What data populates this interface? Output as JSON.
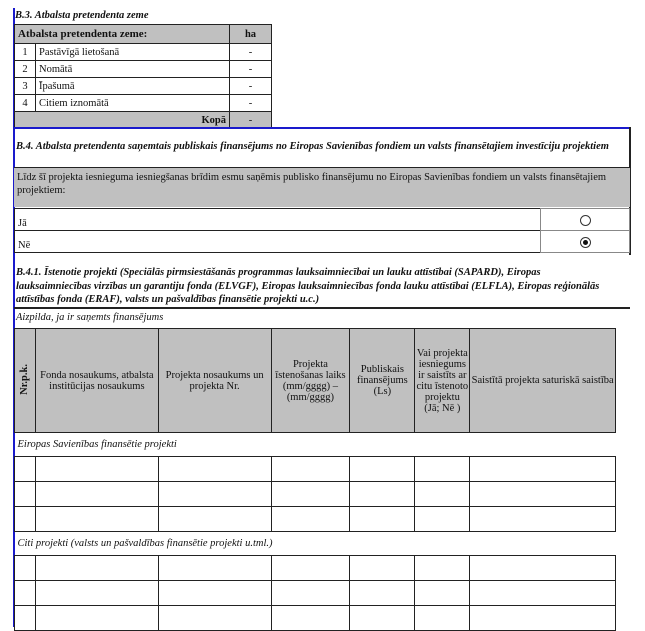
{
  "b3": {
    "title": "B.3. Atbalsta pretendenta zeme",
    "header": "Atbalsta pretendenta zeme:",
    "unit": "ha",
    "rows": [
      {
        "n": "1",
        "label": "Pastāvīgā lietošanā",
        "value": "-"
      },
      {
        "n": "2",
        "label": "Nomātā",
        "value": "-"
      },
      {
        "n": "3",
        "label": "Īpašumā",
        "value": "-"
      },
      {
        "n": "4",
        "label": "Citiem iznomātā",
        "value": "-"
      }
    ],
    "total_label": "Kopā",
    "total_value": "-"
  },
  "b4": {
    "title": "B.4. Atbalsta  pretendenta saņemtais publiskais finansējums no Eiropas Savienības fondiem un valsts finansētajiem investīciju projektiem",
    "question": "Līdz šī projekta iesnieguma iesniegšanas brīdim esmu saņēmis publisko  finansējumu no Eiropas Savienības fondiem un valsts finansētajiem projektiem:",
    "options": [
      {
        "label": "Jā",
        "selected": false
      },
      {
        "label": "Nē",
        "selected": true
      }
    ]
  },
  "b41": {
    "title": "B.4.1.  Īstenotie projekti (Speciālās pirmsiestāšanās programmas lauksaimniecībai un lauku attīstībai (SAPARD),  Eiropas lauksaimniecības virzības un garantiju fonda (ELVGF), Eiropas lauksaimniecības fonda lauku attīstībai (ELFLA), Eiropas reģionālās attīstības fonda (ERAF), valsts un pašvaldības  finansētie projekti u.c.)",
    "note": "Aizpilda, ja ir saņemts finansējums",
    "columns": [
      "Nr.p.k.",
      "Fonda nosaukums, atbalsta institūcijas nosaukums",
      "Projekta nosaukums un projekta Nr.",
      "Projekta īstenošanas laiks (mm/gggg) – (mm/gggg)",
      "Publiskais finansējums (Ls)",
      "Vai projekta iesniegums ir saistīts ar citu īstenoto projektu (Jā; Nē )",
      "Saistītā projekta saturiskā saistība"
    ],
    "section_eu": "Eiropas Savienības finansētie projekti",
    "section_other": "Citi projekti (valsts un pašvaldības finansētie projekti u.tml.)"
  }
}
